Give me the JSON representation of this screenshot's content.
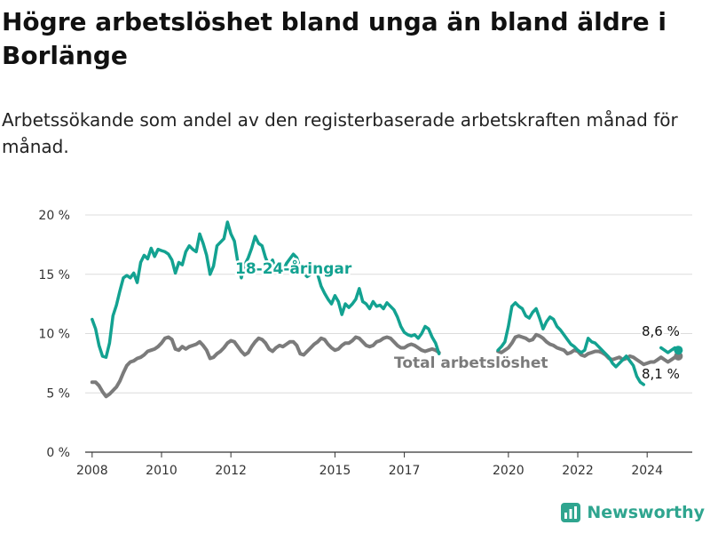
{
  "title": "Högre arbetslöshet bland unga än bland äldre i Borlänge",
  "subtitle": "Arbetssökande som andel av den registerbaserade arbetskraften månad för månad.",
  "brand": {
    "name": "Newsworthy",
    "color": "#2fa58f"
  },
  "chart_data": {
    "type": "line",
    "title": "Högre arbetslöshet bland unga än bland äldre i Borlänge",
    "ylim": [
      0,
      20
    ],
    "xlim": [
      2007.8,
      2025.3
    ],
    "y_ticks": [
      0,
      5,
      10,
      15,
      20
    ],
    "y_tick_labels": [
      "0 %",
      "5 %",
      "10 %",
      "15 %",
      "20 %"
    ],
    "x_ticks": [
      2008,
      2010,
      2012,
      2015,
      2017,
      2020,
      2022,
      2024
    ],
    "x_tick_labels": [
      "2008",
      "2010",
      "2012",
      "2015",
      "2017",
      "2020",
      "2022",
      "2024"
    ],
    "grid": "horizontal",
    "series": [
      {
        "name": "Total arbetslöshet",
        "color": "#7b7b7b",
        "end_label": "8,1 %",
        "points": [
          [
            2008.0,
            5.9
          ],
          [
            2008.1,
            5.9
          ],
          [
            2008.2,
            5.6
          ],
          [
            2008.3,
            5.1
          ],
          [
            2008.4,
            4.7
          ],
          [
            2008.5,
            4.9
          ],
          [
            2008.6,
            5.2
          ],
          [
            2008.7,
            5.5
          ],
          [
            2008.8,
            6.0
          ],
          [
            2008.9,
            6.7
          ],
          [
            2009.0,
            7.3
          ],
          [
            2009.1,
            7.6
          ],
          [
            2009.2,
            7.7
          ],
          [
            2009.3,
            7.9
          ],
          [
            2009.4,
            8.0
          ],
          [
            2009.5,
            8.2
          ],
          [
            2009.6,
            8.5
          ],
          [
            2009.7,
            8.6
          ],
          [
            2009.8,
            8.7
          ],
          [
            2009.9,
            8.9
          ],
          [
            2010.0,
            9.2
          ],
          [
            2010.1,
            9.6
          ],
          [
            2010.2,
            9.7
          ],
          [
            2010.3,
            9.5
          ],
          [
            2010.4,
            8.7
          ],
          [
            2010.5,
            8.6
          ],
          [
            2010.6,
            8.9
          ],
          [
            2010.7,
            8.7
          ],
          [
            2010.8,
            8.9
          ],
          [
            2010.9,
            9.0
          ],
          [
            2011.0,
            9.1
          ],
          [
            2011.1,
            9.3
          ],
          [
            2011.2,
            9.0
          ],
          [
            2011.3,
            8.6
          ],
          [
            2011.4,
            7.9
          ],
          [
            2011.5,
            8.0
          ],
          [
            2011.6,
            8.3
          ],
          [
            2011.7,
            8.5
          ],
          [
            2011.8,
            8.8
          ],
          [
            2011.9,
            9.2
          ],
          [
            2012.0,
            9.4
          ],
          [
            2012.1,
            9.3
          ],
          [
            2012.2,
            8.9
          ],
          [
            2012.3,
            8.5
          ],
          [
            2012.4,
            8.2
          ],
          [
            2012.5,
            8.4
          ],
          [
            2012.6,
            8.9
          ],
          [
            2012.7,
            9.3
          ],
          [
            2012.8,
            9.6
          ],
          [
            2012.9,
            9.5
          ],
          [
            2013.0,
            9.2
          ],
          [
            2013.1,
            8.7
          ],
          [
            2013.2,
            8.5
          ],
          [
            2013.3,
            8.8
          ],
          [
            2013.4,
            9.0
          ],
          [
            2013.5,
            8.9
          ],
          [
            2013.6,
            9.1
          ],
          [
            2013.7,
            9.3
          ],
          [
            2013.8,
            9.3
          ],
          [
            2013.9,
            9.0
          ],
          [
            2014.0,
            8.3
          ],
          [
            2014.1,
            8.2
          ],
          [
            2014.2,
            8.5
          ],
          [
            2014.3,
            8.8
          ],
          [
            2014.4,
            9.1
          ],
          [
            2014.5,
            9.3
          ],
          [
            2014.6,
            9.6
          ],
          [
            2014.7,
            9.5
          ],
          [
            2014.8,
            9.1
          ],
          [
            2014.9,
            8.8
          ],
          [
            2015.0,
            8.6
          ],
          [
            2015.1,
            8.7
          ],
          [
            2015.2,
            9.0
          ],
          [
            2015.3,
            9.2
          ],
          [
            2015.4,
            9.2
          ],
          [
            2015.5,
            9.4
          ],
          [
            2015.6,
            9.7
          ],
          [
            2015.7,
            9.6
          ],
          [
            2015.8,
            9.3
          ],
          [
            2015.9,
            9.0
          ],
          [
            2016.0,
            8.9
          ],
          [
            2016.1,
            9.0
          ],
          [
            2016.2,
            9.3
          ],
          [
            2016.3,
            9.4
          ],
          [
            2016.4,
            9.6
          ],
          [
            2016.5,
            9.7
          ],
          [
            2016.6,
            9.6
          ],
          [
            2016.7,
            9.3
          ],
          [
            2016.8,
            9.0
          ],
          [
            2016.9,
            8.8
          ],
          [
            2017.0,
            8.8
          ],
          [
            2017.1,
            9.0
          ],
          [
            2017.2,
            9.1
          ],
          [
            2017.3,
            9.0
          ],
          [
            2017.4,
            8.8
          ],
          [
            2017.5,
            8.6
          ],
          [
            2017.6,
            8.5
          ],
          [
            2017.7,
            8.6
          ],
          [
            2017.8,
            8.7
          ],
          [
            2017.9,
            8.6
          ],
          [
            2018.0,
            8.4
          ],
          [
            2019.7,
            8.5
          ],
          [
            2019.8,
            8.4
          ],
          [
            2019.9,
            8.6
          ],
          [
            2020.0,
            8.8
          ],
          [
            2020.1,
            9.2
          ],
          [
            2020.2,
            9.7
          ],
          [
            2020.3,
            9.8
          ],
          [
            2020.4,
            9.7
          ],
          [
            2020.5,
            9.6
          ],
          [
            2020.6,
            9.4
          ],
          [
            2020.7,
            9.5
          ],
          [
            2020.8,
            9.9
          ],
          [
            2020.9,
            9.8
          ],
          [
            2021.0,
            9.6
          ],
          [
            2021.1,
            9.3
          ],
          [
            2021.2,
            9.1
          ],
          [
            2021.3,
            9.0
          ],
          [
            2021.4,
            8.8
          ],
          [
            2021.5,
            8.7
          ],
          [
            2021.6,
            8.6
          ],
          [
            2021.7,
            8.3
          ],
          [
            2021.8,
            8.4
          ],
          [
            2021.9,
            8.6
          ],
          [
            2022.0,
            8.5
          ],
          [
            2022.1,
            8.2
          ],
          [
            2022.2,
            8.1
          ],
          [
            2022.3,
            8.3
          ],
          [
            2022.4,
            8.4
          ],
          [
            2022.5,
            8.5
          ],
          [
            2022.6,
            8.5
          ],
          [
            2022.7,
            8.4
          ],
          [
            2022.8,
            8.2
          ],
          [
            2022.9,
            7.9
          ],
          [
            2023.0,
            7.8
          ],
          [
            2023.1,
            7.9
          ],
          [
            2023.2,
            8.0
          ],
          [
            2023.3,
            7.8
          ],
          [
            2023.4,
            7.9
          ],
          [
            2023.5,
            8.1
          ],
          [
            2023.6,
            8.0
          ],
          [
            2023.7,
            7.8
          ],
          [
            2023.8,
            7.6
          ],
          [
            2023.9,
            7.4
          ],
          [
            2024.0,
            7.5
          ],
          [
            2024.1,
            7.6
          ],
          [
            2024.2,
            7.6
          ],
          [
            2024.3,
            7.8
          ],
          [
            2024.4,
            8.0
          ],
          [
            2024.5,
            7.8
          ],
          [
            2024.6,
            7.6
          ],
          [
            2024.7,
            7.8
          ],
          [
            2024.8,
            8.0
          ],
          [
            2024.9,
            8.1
          ]
        ]
      },
      {
        "name": "18-24-åringar",
        "color": "#13a291",
        "end_label": "8,6 %",
        "points": [
          [
            2008.0,
            11.2
          ],
          [
            2008.1,
            10.4
          ],
          [
            2008.2,
            9.0
          ],
          [
            2008.3,
            8.1
          ],
          [
            2008.4,
            8.0
          ],
          [
            2008.5,
            9.2
          ],
          [
            2008.6,
            11.5
          ],
          [
            2008.7,
            12.4
          ],
          [
            2008.8,
            13.6
          ],
          [
            2008.9,
            14.7
          ],
          [
            2009.0,
            14.9
          ],
          [
            2009.1,
            14.7
          ],
          [
            2009.2,
            15.1
          ],
          [
            2009.3,
            14.3
          ],
          [
            2009.4,
            16.0
          ],
          [
            2009.5,
            16.6
          ],
          [
            2009.6,
            16.3
          ],
          [
            2009.7,
            17.2
          ],
          [
            2009.8,
            16.5
          ],
          [
            2009.9,
            17.1
          ],
          [
            2010.0,
            17.0
          ],
          [
            2010.1,
            16.9
          ],
          [
            2010.2,
            16.7
          ],
          [
            2010.3,
            16.2
          ],
          [
            2010.4,
            15.1
          ],
          [
            2010.5,
            16.0
          ],
          [
            2010.6,
            15.8
          ],
          [
            2010.7,
            16.9
          ],
          [
            2010.8,
            17.4
          ],
          [
            2010.9,
            17.1
          ],
          [
            2011.0,
            16.9
          ],
          [
            2011.1,
            18.4
          ],
          [
            2011.2,
            17.6
          ],
          [
            2011.3,
            16.6
          ],
          [
            2011.4,
            15.0
          ],
          [
            2011.5,
            15.7
          ],
          [
            2011.6,
            17.4
          ],
          [
            2011.7,
            17.7
          ],
          [
            2011.8,
            18.0
          ],
          [
            2011.9,
            19.4
          ],
          [
            2012.0,
            18.4
          ],
          [
            2012.1,
            17.8
          ],
          [
            2012.2,
            16.0
          ],
          [
            2012.3,
            14.7
          ],
          [
            2012.4,
            15.8
          ],
          [
            2012.5,
            16.4
          ],
          [
            2012.6,
            17.2
          ],
          [
            2012.7,
            18.2
          ],
          [
            2012.8,
            17.6
          ],
          [
            2012.9,
            17.4
          ],
          [
            2013.0,
            16.4
          ],
          [
            2013.1,
            15.7
          ],
          [
            2013.2,
            16.2
          ],
          [
            2013.3,
            15.2
          ],
          [
            2013.4,
            15.0
          ],
          [
            2013.5,
            15.2
          ],
          [
            2013.6,
            15.9
          ],
          [
            2013.7,
            16.3
          ],
          [
            2013.8,
            16.7
          ],
          [
            2013.9,
            16.4
          ],
          [
            2014.0,
            15.5
          ],
          [
            2014.1,
            15.1
          ],
          [
            2014.2,
            14.8
          ],
          [
            2014.3,
            15.0
          ],
          [
            2014.4,
            15.6
          ],
          [
            2014.5,
            15.0
          ],
          [
            2014.6,
            14.0
          ],
          [
            2014.7,
            13.4
          ],
          [
            2014.8,
            12.9
          ],
          [
            2014.9,
            12.5
          ],
          [
            2015.0,
            13.2
          ],
          [
            2015.1,
            12.7
          ],
          [
            2015.2,
            11.6
          ],
          [
            2015.3,
            12.5
          ],
          [
            2015.4,
            12.2
          ],
          [
            2015.5,
            12.5
          ],
          [
            2015.6,
            12.9
          ],
          [
            2015.7,
            13.8
          ],
          [
            2015.8,
            12.7
          ],
          [
            2015.9,
            12.5
          ],
          [
            2016.0,
            12.1
          ],
          [
            2016.1,
            12.7
          ],
          [
            2016.2,
            12.3
          ],
          [
            2016.3,
            12.4
          ],
          [
            2016.4,
            12.1
          ],
          [
            2016.5,
            12.6
          ],
          [
            2016.6,
            12.3
          ],
          [
            2016.7,
            12.0
          ],
          [
            2016.8,
            11.4
          ],
          [
            2016.9,
            10.6
          ],
          [
            2017.0,
            10.1
          ],
          [
            2017.1,
            9.9
          ],
          [
            2017.2,
            9.8
          ],
          [
            2017.3,
            9.9
          ],
          [
            2017.4,
            9.6
          ],
          [
            2017.5,
            10.0
          ],
          [
            2017.6,
            10.6
          ],
          [
            2017.7,
            10.4
          ],
          [
            2017.8,
            9.7
          ],
          [
            2017.9,
            9.2
          ],
          [
            2018.0,
            8.3
          ],
          [
            2019.7,
            8.6
          ],
          [
            2019.8,
            8.9
          ],
          [
            2019.9,
            9.3
          ],
          [
            2020.0,
            10.6
          ],
          [
            2020.1,
            12.3
          ],
          [
            2020.2,
            12.6
          ],
          [
            2020.3,
            12.3
          ],
          [
            2020.4,
            12.1
          ],
          [
            2020.5,
            11.5
          ],
          [
            2020.6,
            11.3
          ],
          [
            2020.7,
            11.8
          ],
          [
            2020.8,
            12.1
          ],
          [
            2020.9,
            11.3
          ],
          [
            2021.0,
            10.4
          ],
          [
            2021.1,
            11.0
          ],
          [
            2021.2,
            11.4
          ],
          [
            2021.3,
            11.2
          ],
          [
            2021.4,
            10.6
          ],
          [
            2021.5,
            10.3
          ],
          [
            2021.6,
            9.9
          ],
          [
            2021.7,
            9.5
          ],
          [
            2021.8,
            9.1
          ],
          [
            2021.9,
            8.9
          ],
          [
            2022.0,
            8.6
          ],
          [
            2022.1,
            8.4
          ],
          [
            2022.2,
            8.6
          ],
          [
            2022.3,
            9.6
          ],
          [
            2022.4,
            9.3
          ],
          [
            2022.5,
            9.2
          ],
          [
            2022.6,
            8.9
          ],
          [
            2022.7,
            8.6
          ],
          [
            2022.8,
            8.3
          ],
          [
            2022.9,
            8.0
          ],
          [
            2023.0,
            7.5
          ],
          [
            2023.1,
            7.2
          ],
          [
            2023.2,
            7.5
          ],
          [
            2023.3,
            7.8
          ],
          [
            2023.4,
            8.1
          ],
          [
            2023.5,
            7.7
          ],
          [
            2023.6,
            7.3
          ],
          [
            2023.7,
            6.4
          ],
          [
            2023.8,
            5.9
          ],
          [
            2023.9,
            5.7
          ],
          [
            2024.2,
            8.3
          ],
          [
            2024.4,
            8.8
          ],
          [
            2024.5,
            8.6
          ],
          [
            2024.6,
            8.4
          ],
          [
            2024.7,
            8.6
          ],
          [
            2024.8,
            8.8
          ],
          [
            2024.9,
            8.6
          ]
        ]
      }
    ]
  }
}
